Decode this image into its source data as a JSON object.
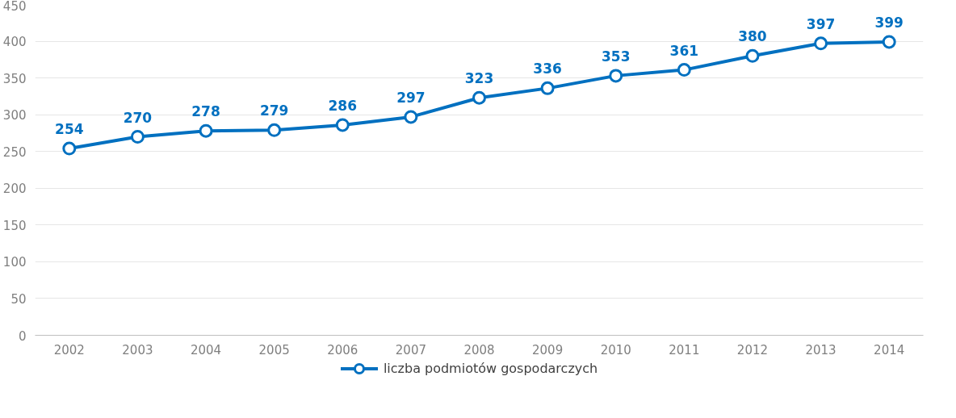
{
  "chart_data": {
    "type": "line",
    "categories": [
      "2002",
      "2003",
      "2004",
      "2005",
      "2006",
      "2007",
      "2008",
      "2009",
      "2010",
      "2011",
      "2012",
      "2013",
      "2014"
    ],
    "series": [
      {
        "name": "liczba podmiotów gospodarczych",
        "color": "#0070c0",
        "values": [
          254,
          270,
          278,
          279,
          286,
          297,
          323,
          336,
          353,
          361,
          380,
          397,
          399
        ]
      }
    ],
    "ylim": [
      0,
      450
    ],
    "yticks": [
      0,
      50,
      100,
      150,
      200,
      250,
      300,
      350,
      400,
      450
    ],
    "grid": "y",
    "legend": "bottom",
    "marker": "circle",
    "data_labels": true
  }
}
